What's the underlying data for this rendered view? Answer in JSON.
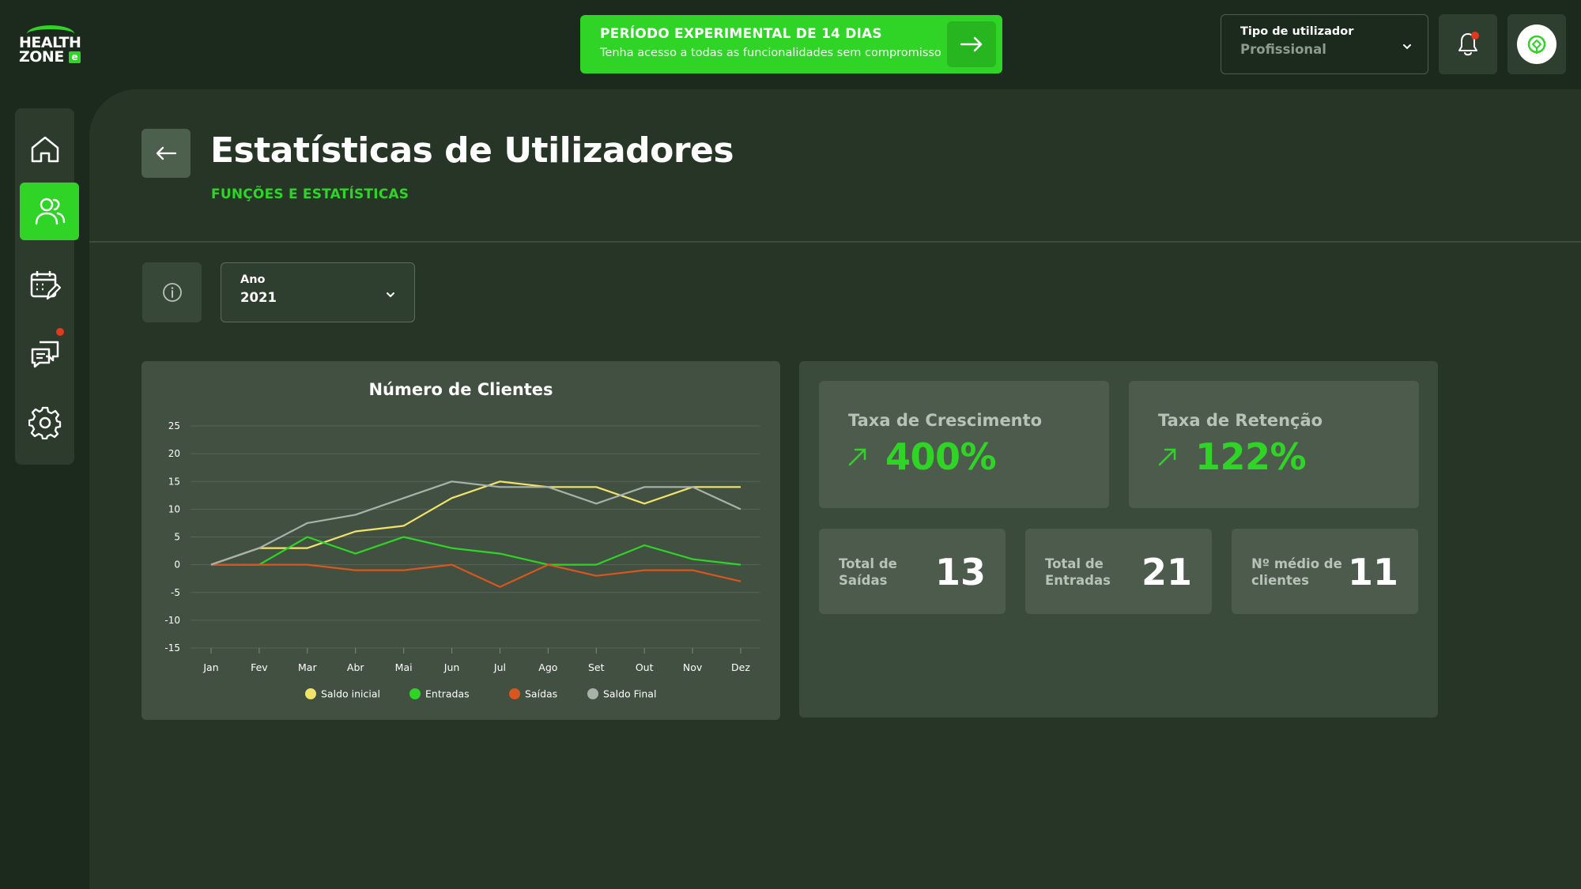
{
  "app": {
    "logo_line1": "HEALTH",
    "logo_line2": "ZONE",
    "logo_badge": "e"
  },
  "trial": {
    "title": "PERÍODO EXPERIMENTAL DE 14 DIAS",
    "subtitle": "Tenha acesso a todas as funcionalidades sem compromisso"
  },
  "user_type": {
    "label": "Tipo de utilizador",
    "value": "Profissional"
  },
  "notifications": {
    "has_unread": true
  },
  "sidebar": {
    "items": [
      {
        "icon": "home-icon",
        "active": false,
        "badge": false
      },
      {
        "icon": "users-icon",
        "active": true,
        "badge": false
      },
      {
        "icon": "calendar-edit-icon",
        "active": false,
        "badge": false
      },
      {
        "icon": "chat-icon",
        "active": false,
        "badge": true
      },
      {
        "icon": "settings-icon",
        "active": false,
        "badge": false
      }
    ]
  },
  "page": {
    "title": "Estatísticas de Utilizadores",
    "subtitle": "FUNÇÕES E ESTATÍSTICAS"
  },
  "filter": {
    "label": "Ano",
    "value": "2021"
  },
  "stats": {
    "growth": {
      "label": "Taxa de Crescimento",
      "value": "400%"
    },
    "retention": {
      "label": "Taxa de Retenção",
      "value": "122%"
    },
    "totals": [
      {
        "label": "Total de Saídas",
        "value": "13"
      },
      {
        "label": "Total de Entradas",
        "value": "21"
      },
      {
        "label": "Nº médio de clientes",
        "value": "11"
      }
    ]
  },
  "colors": {
    "accent": "#2fd427",
    "saldo_inicial": "#f2e36b",
    "entradas": "#2fd427",
    "saidas": "#d9561e",
    "saldo_final": "#a9b2a9"
  },
  "chart_data": {
    "type": "line",
    "title": "Número de Clientes",
    "xlabel": "",
    "ylabel": "",
    "categories": [
      "Jan",
      "Fev",
      "Mar",
      "Abr",
      "Mai",
      "Jun",
      "Jul",
      "Ago",
      "Set",
      "Out",
      "Nov",
      "Dez"
    ],
    "ylim": [
      -15,
      25
    ],
    "yticks": [
      25,
      20,
      15,
      10,
      5,
      0,
      -5,
      -10,
      -15
    ],
    "grid": true,
    "legend_position": "bottom",
    "series": [
      {
        "name": "Saldo inicial",
        "color": "#f2e36b",
        "values": [
          0,
          3,
          3,
          6,
          7,
          12,
          15,
          14,
          14,
          11,
          14,
          14
        ]
      },
      {
        "name": "Entradas",
        "color": "#2fd427",
        "values": [
          0,
          0,
          5,
          2,
          5,
          3,
          2,
          0,
          0,
          3.5,
          1,
          0
        ]
      },
      {
        "name": "Saídas",
        "color": "#d9561e",
        "values": [
          0,
          0,
          0,
          -1,
          -1,
          0,
          -4,
          0,
          -2,
          -1,
          -1,
          -3
        ]
      },
      {
        "name": "Saldo Final",
        "color": "#a9b2a9",
        "values": [
          0,
          3,
          7.5,
          9,
          12,
          15,
          14,
          14,
          11,
          14,
          14,
          10
        ]
      }
    ]
  }
}
